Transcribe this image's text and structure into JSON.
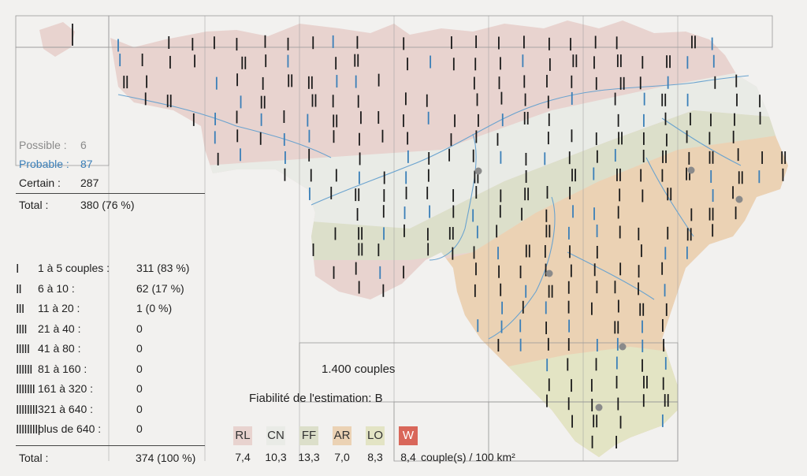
{
  "status": {
    "possible": {
      "label": "Possible :",
      "value": "6",
      "color": "#8a8a8a"
    },
    "probable": {
      "label": "Probable :",
      "value": "87",
      "color": "#3a7fb8"
    },
    "certain": {
      "label": "Certain :",
      "value": "287"
    },
    "total": {
      "label": "Total :",
      "value": "380 (76 %)"
    }
  },
  "classes": [
    {
      "symbol": "I",
      "label": "1 à 5 couples :",
      "value": "311 (83 %)"
    },
    {
      "symbol": "II",
      "label": "6 à 10 :",
      "value": "62 (17 %)"
    },
    {
      "symbol": "III",
      "label": "11 à 20 :",
      "value": "1 (0 %)"
    },
    {
      "symbol": "IIII",
      "label": "21 à 40 :",
      "value": "0"
    },
    {
      "symbol": "IIIII",
      "label": "41 à 80 :",
      "value": "0"
    },
    {
      "symbol": "IIIIII",
      "label": "81 à 160 :",
      "value": "0"
    },
    {
      "symbol": "IIIIIII",
      "label": "161 à 320 :",
      "value": "0"
    },
    {
      "symbol": "IIIIIIII",
      "label": "321 à 640 :",
      "value": "0"
    },
    {
      "symbol": "IIIIIIIII",
      "label": "plus de 640 :",
      "value": "0"
    }
  ],
  "classes_total": {
    "label": "Total :",
    "value": "374 (100 %)"
  },
  "population": "1.400 couples",
  "reliability": "Fiabilité de l'estimation: B",
  "regions": [
    {
      "code": "RL",
      "density": "7,4",
      "color": "#e8d3cf"
    },
    {
      "code": "CN",
      "density": "10,3",
      "color": "#e9ebe6"
    },
    {
      "code": "FF",
      "density": "13,3",
      "color": "#dcdfca"
    },
    {
      "code": "AR",
      "density": "7,0",
      "color": "#ebd2b4"
    },
    {
      "code": "LO",
      "density": "8,3",
      "color": "#e3e4c4"
    },
    {
      "code": "W",
      "density": "8,4",
      "color": "#d9675a"
    }
  ],
  "density_unit": "couple(s) / 100 km²",
  "colors": {
    "certain_tick": "#1a1a1a",
    "probable_tick": "#3a7fb8",
    "river": "#6aa3cf",
    "grid": "#9a9a9a",
    "possible_dot": "#8a8a8a"
  }
}
